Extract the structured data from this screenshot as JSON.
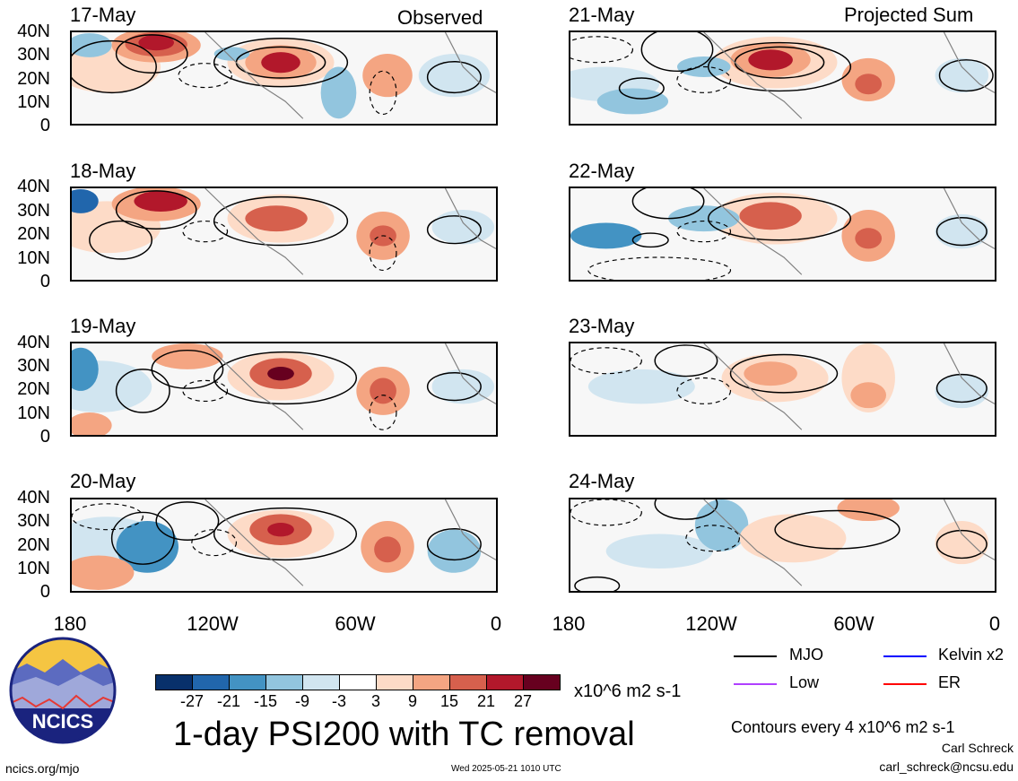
{
  "headers": {
    "left": "Observed",
    "right": "Projected Sum"
  },
  "panels": [
    {
      "date": "17-May"
    },
    {
      "date": "21-May"
    },
    {
      "date": "18-May"
    },
    {
      "date": "22-May"
    },
    {
      "date": "19-May"
    },
    {
      "date": "23-May"
    },
    {
      "date": "20-May"
    },
    {
      "date": "24-May"
    }
  ],
  "y_ticks": [
    "40N",
    "30N",
    "20N",
    "10N",
    "0"
  ],
  "x_ticks": [
    "180",
    "120W",
    "60W",
    "0"
  ],
  "colorbar": {
    "labels": [
      "-27",
      "-21",
      "-15",
      "-9",
      "-3",
      "3",
      "9",
      "15",
      "21",
      "27"
    ],
    "colors": [
      "#08306b",
      "#2166ac",
      "#4393c3",
      "#92c5de",
      "#d1e5f0",
      "#ffffff",
      "#fddbc7",
      "#f4a582",
      "#d6604d",
      "#b2182b",
      "#67001f"
    ],
    "unit": "x10^6 m2 s-1"
  },
  "title": "1-day PSI200 with TC removal",
  "legend": [
    {
      "name": "MJO",
      "color": "#000000"
    },
    {
      "name": "Kelvin x2",
      "color": "#0000ff"
    },
    {
      "name": "Low",
      "color": "#b040ff"
    },
    {
      "name": "ER",
      "color": "#ff0000"
    }
  ],
  "contour_note": "Contours every 4 x10^6 m2 s-1",
  "credit_name": "Carl Schreck",
  "credit_email": "carl_schreck@ncsu.edu",
  "website": "ncics.org/mjo",
  "timestamp": "Wed 2025-05-21 1010 UTC",
  "logo_text": "NCICS"
}
